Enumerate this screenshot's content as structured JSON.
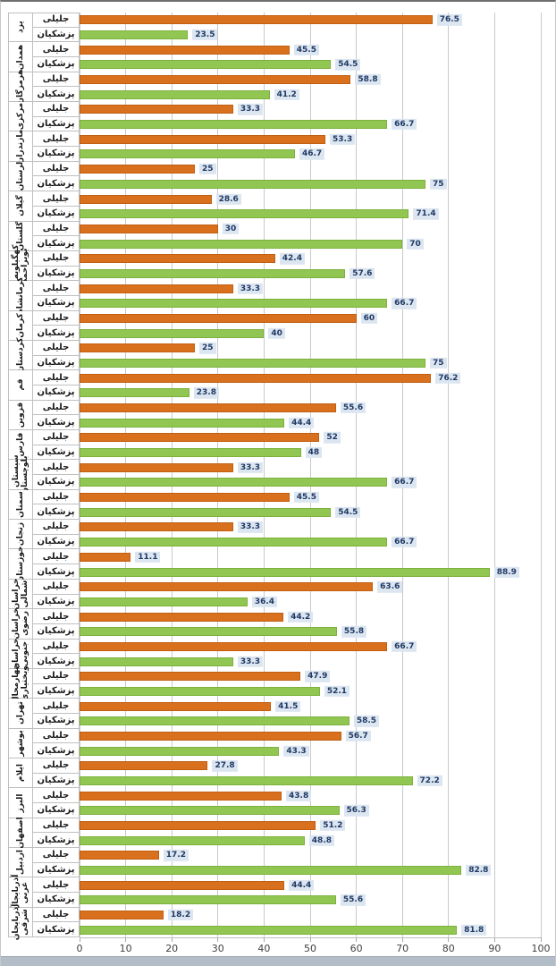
{
  "chart_data": {
    "type": "bar",
    "orientation": "horizontal-grouped",
    "title": "",
    "xlabel": "",
    "ylabel": "",
    "xlim": [
      0,
      100
    ],
    "x_ticks": [
      0,
      10,
      20,
      30,
      40,
      50,
      60,
      70,
      80,
      90,
      100
    ],
    "grid": "vertical",
    "legend_position": "none",
    "bar_row_labels": {
      "jalili": "جلیلی",
      "pezeshkian": "پزشکیان"
    },
    "colors": {
      "jalili_bar": "#d9701e",
      "pezeshkian_bar": "#90c651",
      "value_label_bg": "#dce6f1",
      "value_label_text": "#1f3864",
      "gridline": "#c9c9c9",
      "cell_border": "#bfbfbf"
    },
    "provinces": [
      {
        "name": "یزد",
        "jalili": 76.5,
        "pezeshkian": 23.5
      },
      {
        "name": "همدان",
        "jalili": 45.5,
        "pezeshkian": 54.5
      },
      {
        "name": "هرمزگان",
        "jalili": 58.8,
        "pezeshkian": 41.2
      },
      {
        "name": "مرکزی",
        "jalili": 33.3,
        "pezeshkian": 66.7
      },
      {
        "name": "مازندران",
        "jalili": 53.3,
        "pezeshkian": 46.7
      },
      {
        "name": "لرستان",
        "jalili": 25,
        "pezeshkian": 75
      },
      {
        "name": "گیلان",
        "jalili": 28.6,
        "pezeshkian": 71.4
      },
      {
        "name": "گلستان",
        "jalili": 30,
        "pezeshkian": 70
      },
      {
        "name": "کهگیلویه و بویراحمد",
        "jalili": 42.4,
        "pezeshkian": 57.6
      },
      {
        "name": "کرمانشاه",
        "jalili": 33.3,
        "pezeshkian": 66.7
      },
      {
        "name": "کرمان",
        "jalili": 60,
        "pezeshkian": 40
      },
      {
        "name": "کردستان",
        "jalili": 25,
        "pezeshkian": 75
      },
      {
        "name": "قم",
        "jalili": 76.2,
        "pezeshkian": 23.8
      },
      {
        "name": "قزوین",
        "jalili": 55.6,
        "pezeshkian": 44.4
      },
      {
        "name": "فارس",
        "jalili": 52,
        "pezeshkian": 48
      },
      {
        "name": "سیستان و بلوچستان",
        "jalili": 33.3,
        "pezeshkian": 66.7
      },
      {
        "name": "سمنان",
        "jalili": 45.5,
        "pezeshkian": 54.5
      },
      {
        "name": "زنجان",
        "jalili": 33.3,
        "pezeshkian": 66.7
      },
      {
        "name": "خوزستان",
        "jalili": 11.1,
        "pezeshkian": 88.9
      },
      {
        "name": "خراسان شمالی",
        "jalili": 63.6,
        "pezeshkian": 36.4
      },
      {
        "name": "خراسان رضوی",
        "jalili": 44.2,
        "pezeshkian": 55.8
      },
      {
        "name": "خراسان جنوبی",
        "jalili": 66.7,
        "pezeshkian": 33.3
      },
      {
        "name": "چهارمحال وبختیاری",
        "jalili": 47.9,
        "pezeshkian": 52.1
      },
      {
        "name": "تهران",
        "jalili": 41.5,
        "pezeshkian": 58.5
      },
      {
        "name": "بوشهر",
        "jalili": 56.7,
        "pezeshkian": 43.3
      },
      {
        "name": "ایلام",
        "jalili": 27.8,
        "pezeshkian": 72.2
      },
      {
        "name": "البرز",
        "jalili": 43.8,
        "pezeshkian": 56.3
      },
      {
        "name": "اصفهان",
        "jalili": 51.2,
        "pezeshkian": 48.8
      },
      {
        "name": "اردبیل",
        "jalili": 17.2,
        "pezeshkian": 82.8
      },
      {
        "name": "آذربایجان غربی",
        "jalili": 44.4,
        "pezeshkian": 55.6
      },
      {
        "name": "آذربایجان شرقی",
        "jalili": 18.2,
        "pezeshkian": 81.8
      }
    ]
  }
}
